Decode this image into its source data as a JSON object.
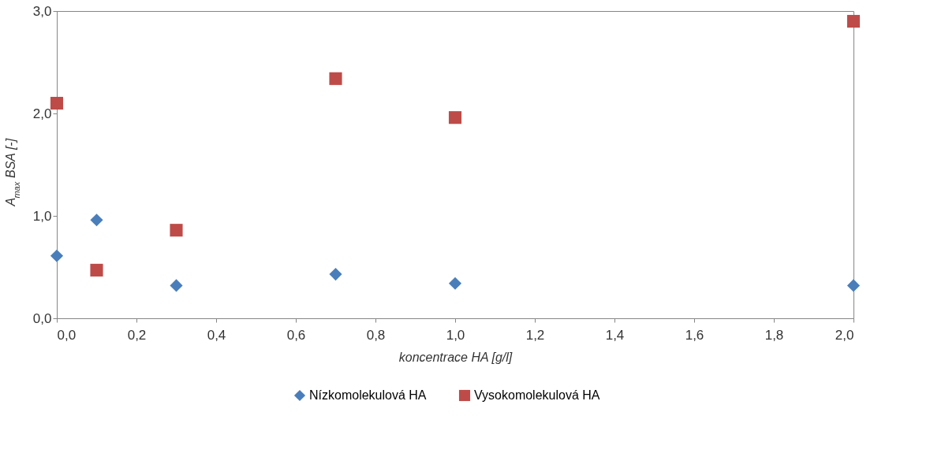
{
  "chart_data": {
    "type": "scatter",
    "xlabel": "koncentrace HA [g/l]",
    "ylabel": "A$_{max}$ BSA [-]",
    "x": [
      0.0,
      0.1,
      0.3,
      0.7,
      1.0,
      2.0
    ],
    "series": [
      {
        "name": "Nízkomolekulová HA",
        "color": "#4a7ebb",
        "marker": "diamond",
        "values": [
          0.61,
          0.96,
          0.32,
          0.43,
          0.34,
          0.32
        ]
      },
      {
        "name": "Vysokomolekulová HA",
        "color": "#be4b48",
        "marker": "square",
        "values": [
          2.1,
          0.47,
          0.86,
          2.34,
          1.96,
          2.9
        ]
      }
    ],
    "xlim": [
      0.0,
      2.0
    ],
    "xticks": [
      {
        "value": 0.0,
        "label": "0,0"
      },
      {
        "value": 0.2,
        "label": "0,2"
      },
      {
        "value": 0.4,
        "label": "0,4"
      },
      {
        "value": 0.6,
        "label": "0,6"
      },
      {
        "value": 0.8,
        "label": "0,8"
      },
      {
        "value": 1.0,
        "label": "1,0"
      },
      {
        "value": 1.2,
        "label": "1,2"
      },
      {
        "value": 1.4,
        "label": "1,4"
      },
      {
        "value": 1.6,
        "label": "1,6"
      },
      {
        "value": 1.8,
        "label": "1,8"
      },
      {
        "value": 2.0,
        "label": "2,0"
      }
    ],
    "ylim": [
      0.0,
      3.0
    ],
    "yticks": [
      {
        "value": 0.0,
        "label": "0,0"
      },
      {
        "value": 1.0,
        "label": "1,0"
      },
      {
        "value": 2.0,
        "label": "2,0"
      },
      {
        "value": 3.0,
        "label": "3,0"
      }
    ],
    "grid": false,
    "legend": "bottom"
  }
}
